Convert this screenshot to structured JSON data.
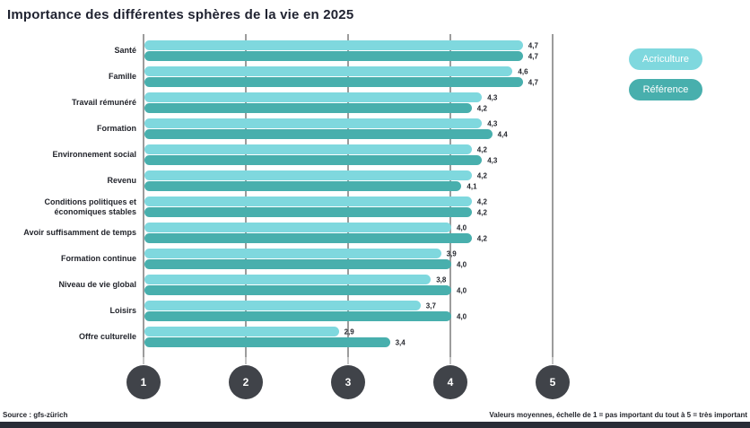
{
  "title": "Importance des différentes sphères de la vie en 2025",
  "legend": [
    {
      "label": "Acriculture",
      "color": "#7fd8de"
    },
    {
      "label": "Référence",
      "color": "#48afad"
    }
  ],
  "footer": {
    "source": "Source : gfs-zürich",
    "note": "Valeurs moyennes, échelle de 1 = pas important du tout à 5 = très important"
  },
  "chart_data": {
    "type": "bar",
    "orientation": "horizontal",
    "title": "Importance des différentes sphères de la vie en 2025",
    "categories": [
      "Santé",
      "Famille",
      "Travail rémunéré",
      "Formation",
      "Environnement social",
      "Revenu",
      "Conditions politiques et économiques stables",
      "Avoir suffisamment de temps",
      "Formation continue",
      "Niveau de vie global",
      "Loisirs",
      "Offre culturelle"
    ],
    "series": [
      {
        "name": "Acriculture",
        "color": "#7fd8de",
        "values": [
          4.7,
          4.6,
          4.3,
          4.3,
          4.2,
          4.2,
          4.2,
          4.0,
          3.9,
          3.8,
          3.7,
          2.9
        ]
      },
      {
        "name": "Référence",
        "color": "#48afad",
        "values": [
          4.7,
          4.7,
          4.2,
          4.4,
          4.3,
          4.1,
          4.2,
          4.2,
          4.0,
          4.0,
          4.0,
          3.4
        ]
      }
    ],
    "xlim": [
      1,
      5
    ],
    "x_ticks": [
      1,
      2,
      3,
      4,
      5
    ],
    "grid": true,
    "legend_position": "top-right",
    "value_label_decimal": "comma"
  }
}
